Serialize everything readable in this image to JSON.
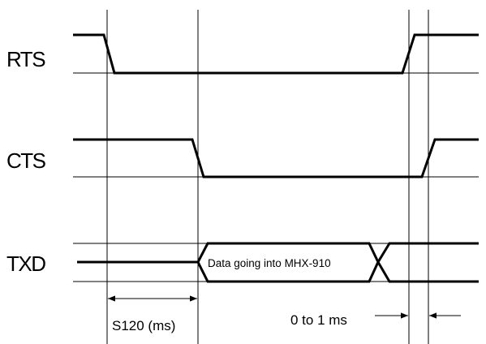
{
  "signals": {
    "rts": {
      "label": "RTS"
    },
    "cts": {
      "label": "CTS"
    },
    "txd": {
      "label": "TXD",
      "data_label": "Data going into MHX-910"
    }
  },
  "annotations": {
    "s120": "S120 (ms)",
    "delay": "0 to 1 ms"
  }
}
